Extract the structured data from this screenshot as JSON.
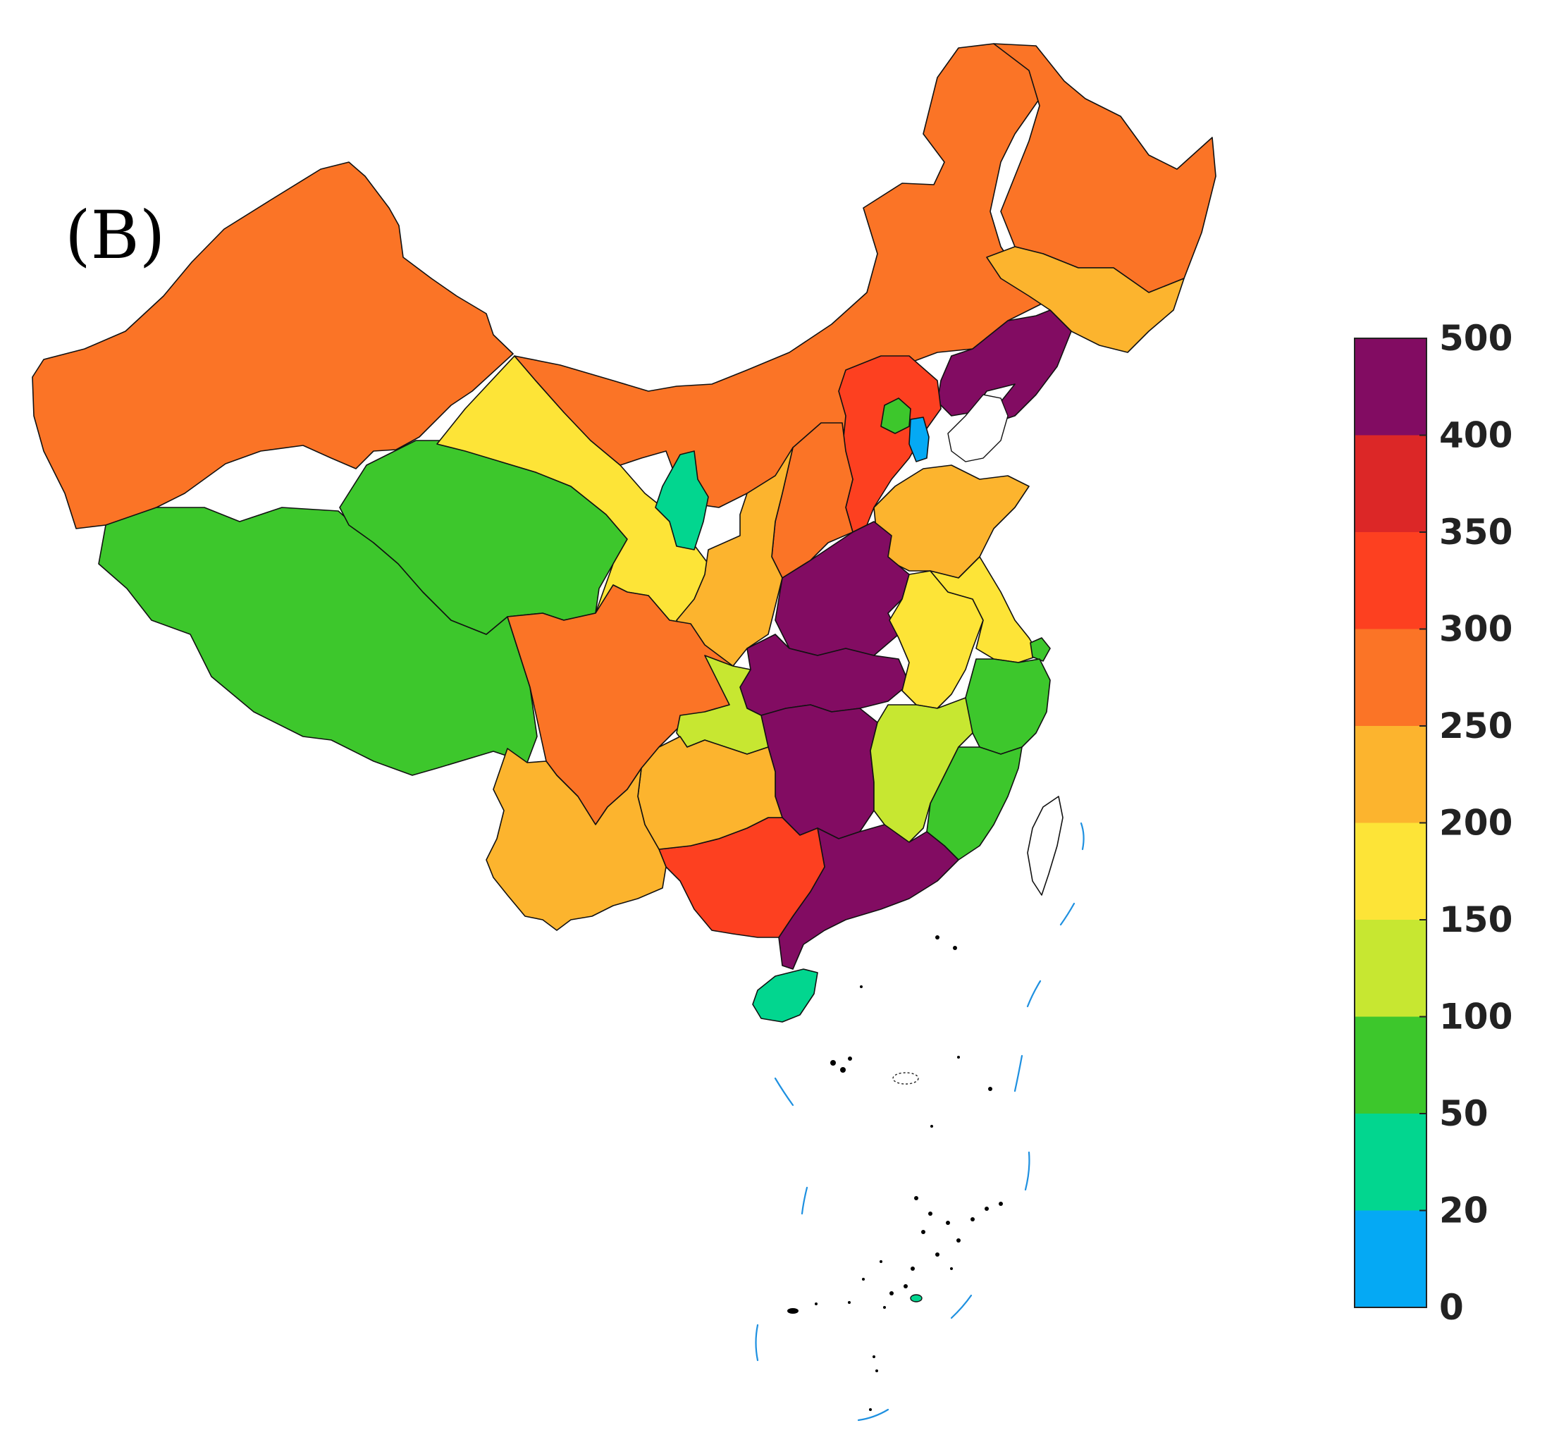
{
  "panel_label": "(B)",
  "colorbar": {
    "bins": [
      {
        "from": 0,
        "to": 20,
        "color": "#05a9f4"
      },
      {
        "from": 20,
        "to": 50,
        "color": "#02d68f"
      },
      {
        "from": 50,
        "to": 100,
        "color": "#3dc72c"
      },
      {
        "from": 100,
        "to": 150,
        "color": "#c7e731"
      },
      {
        "from": 150,
        "to": 200,
        "color": "#fde437"
      },
      {
        "from": 200,
        "to": 250,
        "color": "#fcb42e"
      },
      {
        "from": 250,
        "to": 300,
        "color": "#fb7426"
      },
      {
        "from": 300,
        "to": 350,
        "color": "#fd4020"
      },
      {
        "from": 350,
        "to": 400,
        "color": "#dc2727"
      },
      {
        "from": 400,
        "to": 500,
        "color": "#820c62"
      }
    ],
    "tick_labels": [
      "0",
      "20",
      "50",
      "100",
      "150",
      "200",
      "250",
      "300",
      "350",
      "400",
      "500"
    ]
  },
  "regions": [
    {
      "name": "Xinjiang",
      "bin": "250-300"
    },
    {
      "name": "Tibet",
      "bin": "50-100"
    },
    {
      "name": "Qinghai",
      "bin": "50-100"
    },
    {
      "name": "Gansu",
      "bin": "150-200"
    },
    {
      "name": "Inner Mongolia",
      "bin": "250-300"
    },
    {
      "name": "Heilongjiang",
      "bin": "250-300"
    },
    {
      "name": "Jilin",
      "bin": "200-250"
    },
    {
      "name": "Liaoning",
      "bin": "400-500"
    },
    {
      "name": "Hebei",
      "bin": "300-350"
    },
    {
      "name": "Beijing",
      "bin": "50-100"
    },
    {
      "name": "Tianjin",
      "bin": "0-20"
    },
    {
      "name": "Shandong",
      "bin": "200-250"
    },
    {
      "name": "Shanxi",
      "bin": "250-300"
    },
    {
      "name": "Ningxia",
      "bin": "20-50"
    },
    {
      "name": "Shaanxi",
      "bin": "200-250"
    },
    {
      "name": "Henan",
      "bin": "400-500"
    },
    {
      "name": "Hubei",
      "bin": "400-500"
    },
    {
      "name": "Hunan",
      "bin": "400-500"
    },
    {
      "name": "Anhui",
      "bin": "150-200"
    },
    {
      "name": "Jiangsu",
      "bin": "150-200"
    },
    {
      "name": "Shanghai",
      "bin": "50-100"
    },
    {
      "name": "Zhejiang",
      "bin": "50-100"
    },
    {
      "name": "Jiangxi",
      "bin": "100-150"
    },
    {
      "name": "Fujian",
      "bin": "50-100"
    },
    {
      "name": "Guangdong",
      "bin": "400-500"
    },
    {
      "name": "Guangxi",
      "bin": "300-350"
    },
    {
      "name": "Hainan",
      "bin": "20-50"
    },
    {
      "name": "Sichuan",
      "bin": "250-300"
    },
    {
      "name": "Chongqing",
      "bin": "100-150"
    },
    {
      "name": "Guizhou",
      "bin": "200-250"
    },
    {
      "name": "Yunnan",
      "bin": "200-250"
    },
    {
      "name": "Taiwan",
      "bin": "none"
    }
  ]
}
